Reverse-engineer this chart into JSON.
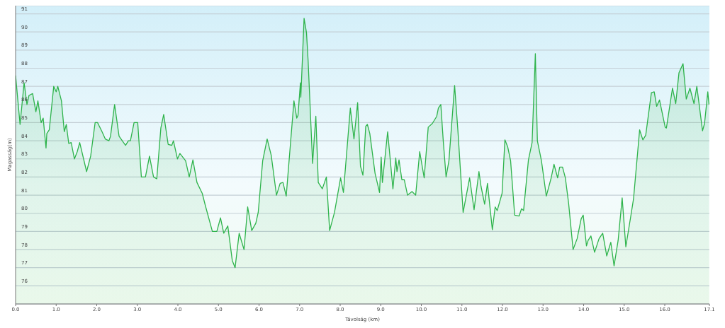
{
  "chart_data": {
    "type": "area",
    "xlabel": "Távolság (km)",
    "ylabel": "Magasság(m)",
    "x": [
      0,
      0.11,
      0.21,
      0.28,
      0.33,
      0.42,
      0.5,
      0.55,
      0.63,
      0.68,
      0.75,
      0.77,
      0.83,
      0.94,
      1.0,
      1.04,
      1.13,
      1.2,
      1.25,
      1.31,
      1.37,
      1.45,
      1.52,
      1.58,
      1.75,
      1.85,
      1.96,
      2.02,
      2.13,
      2.21,
      2.3,
      2.34,
      2.44,
      2.55,
      2.66,
      2.71,
      2.78,
      2.83,
      2.92,
      3.01,
      3.1,
      3.2,
      3.3,
      3.4,
      3.48,
      3.58,
      3.65,
      3.76,
      3.85,
      3.89,
      3.99,
      4.05,
      4.19,
      4.28,
      4.37,
      4.47,
      4.6,
      4.68,
      4.85,
      4.96,
      5.05,
      5.13,
      5.23,
      5.34,
      5.41,
      5.51,
      5.63,
      5.72,
      5.82,
      5.92,
      5.98,
      6.09,
      6.2,
      6.3,
      6.43,
      6.52,
      6.59,
      6.67,
      6.86,
      6.93,
      6.96,
      7.02,
      7.03,
      7.11,
      7.17,
      7.21,
      7.32,
      7.36,
      7.4,
      7.46,
      7.56,
      7.66,
      7.74,
      7.86,
      8.01,
      8.08,
      8.25,
      8.34,
      8.43,
      8.5,
      8.56,
      8.63,
      8.67,
      8.73,
      8.86,
      8.97,
      9.01,
      9.04,
      9.17,
      9.3,
      9.37,
      9.4,
      9.45,
      9.52,
      9.58,
      9.66,
      9.77,
      9.86,
      9.96,
      10.07,
      10.17,
      10.27,
      10.38,
      10.42,
      10.48,
      10.54,
      10.61,
      10.68,
      10.82,
      10.9,
      11.03,
      11.19,
      11.3,
      11.42,
      11.47,
      11.56,
      11.63,
      11.75,
      11.82,
      11.87,
      11.99,
      12.06,
      12.13,
      12.2,
      12.3,
      12.41,
      12.47,
      12.52,
      12.64,
      12.73,
      12.81,
      12.86,
      12.96,
      13.08,
      13.2,
      13.27,
      13.36,
      13.41,
      13.48,
      13.55,
      13.63,
      13.74,
      13.84,
      13.94,
      13.99,
      14.07,
      14.11,
      14.18,
      14.27,
      14.38,
      14.47,
      14.57,
      14.67,
      14.75,
      14.85,
      14.95,
      15.04,
      15.17,
      15.23,
      15.38,
      15.46,
      15.53,
      15.67,
      15.74,
      15.8,
      15.87,
      16.01,
      16.04,
      16.19,
      16.27,
      16.35,
      16.45,
      16.53,
      16.62,
      16.72,
      16.79,
      16.93,
      16.98,
      17.06,
      17.09
    ],
    "series": [
      {
        "color": "#2eb34b",
        "values": [
          87.6,
          84.9,
          87.2,
          86.0,
          86.5,
          86.6,
          85.6,
          86.2,
          85.0,
          85.25,
          83.6,
          84.4,
          84.6,
          87.0,
          86.7,
          87.0,
          86.2,
          84.5,
          84.9,
          83.85,
          83.9,
          83.0,
          83.4,
          83.9,
          82.3,
          83.15,
          85.0,
          85.0,
          84.5,
          84.1,
          84.0,
          84.25,
          86.0,
          84.25,
          83.9,
          83.75,
          84.0,
          84.0,
          85.0,
          85.0,
          82.0,
          82.0,
          83.15,
          82.0,
          81.9,
          84.7,
          85.45,
          83.8,
          83.75,
          84.0,
          83.0,
          83.3,
          82.9,
          82.0,
          82.95,
          81.7,
          81.1,
          80.4,
          79.0,
          79.0,
          79.75,
          78.9,
          79.3,
          77.4,
          77.0,
          78.9,
          78.0,
          80.35,
          79.05,
          79.45,
          80.05,
          82.9,
          84.1,
          83.2,
          81.0,
          81.65,
          81.7,
          80.95,
          86.2,
          85.25,
          85.4,
          87.2,
          86.4,
          90.75,
          89.95,
          88.4,
          82.75,
          84.1,
          85.35,
          81.7,
          81.35,
          82.0,
          79.05,
          80.05,
          81.95,
          81.15,
          85.8,
          84.1,
          86.1,
          82.6,
          82.1,
          84.8,
          84.9,
          84.4,
          82.2,
          81.15,
          83.1,
          81.7,
          84.5,
          81.35,
          83.05,
          82.3,
          82.95,
          81.85,
          81.85,
          81.0,
          81.2,
          81.0,
          83.4,
          81.95,
          84.75,
          84.95,
          85.35,
          85.8,
          86.0,
          84.0,
          82.0,
          82.9,
          87.05,
          84.6,
          80.05,
          81.95,
          80.2,
          82.3,
          81.5,
          80.5,
          81.65,
          79.1,
          80.35,
          80.15,
          81.1,
          84.05,
          83.65,
          82.9,
          79.9,
          79.85,
          80.25,
          80.15,
          82.95,
          83.9,
          88.8,
          84.0,
          82.9,
          80.95,
          81.95,
          82.7,
          81.95,
          82.55,
          82.55,
          81.95,
          80.55,
          78.0,
          78.6,
          79.7,
          79.9,
          78.2,
          78.5,
          78.75,
          77.85,
          78.6,
          78.9,
          77.65,
          78.4,
          77.1,
          78.5,
          80.85,
          78.15,
          79.95,
          80.8,
          84.6,
          84.05,
          84.3,
          86.65,
          86.7,
          85.9,
          86.25,
          84.75,
          84.7,
          86.9,
          86.05,
          87.75,
          88.25,
          86.3,
          86.9,
          86.05,
          87.0,
          84.55,
          84.95,
          86.7,
          86.0
        ]
      }
    ],
    "xlim": [
      0,
      17.1
    ],
    "xticks": [
      {
        "value": 0,
        "label": "0.0"
      },
      {
        "value": 1,
        "label": "1.0"
      },
      {
        "value": 2,
        "label": "2.0"
      },
      {
        "value": 3,
        "label": "3.0"
      },
      {
        "value": 4,
        "label": "4.0"
      },
      {
        "value": 5,
        "label": "5.0"
      },
      {
        "value": 6,
        "label": "6.0"
      },
      {
        "value": 7,
        "label": "7.0"
      },
      {
        "value": 8,
        "label": "8.0"
      },
      {
        "value": 9,
        "label": "9.0"
      },
      {
        "value": 10,
        "label": "10.0"
      },
      {
        "value": 11,
        "label": "11.0"
      },
      {
        "value": 12,
        "label": "12.0"
      },
      {
        "value": 13,
        "label": "13.0"
      },
      {
        "value": 14,
        "label": "14.0"
      },
      {
        "value": 15,
        "label": "15.0"
      },
      {
        "value": 16,
        "label": "16.0"
      },
      17.1
    ],
    "ylim": [
      75,
      91.45
    ],
    "yticks": [
      76,
      77,
      78,
      79,
      80,
      81,
      82,
      83,
      84,
      85,
      86,
      87,
      88,
      89,
      90,
      91
    ],
    "grid": "y",
    "legend": false,
    "marker": "none",
    "line_style": "solid"
  }
}
